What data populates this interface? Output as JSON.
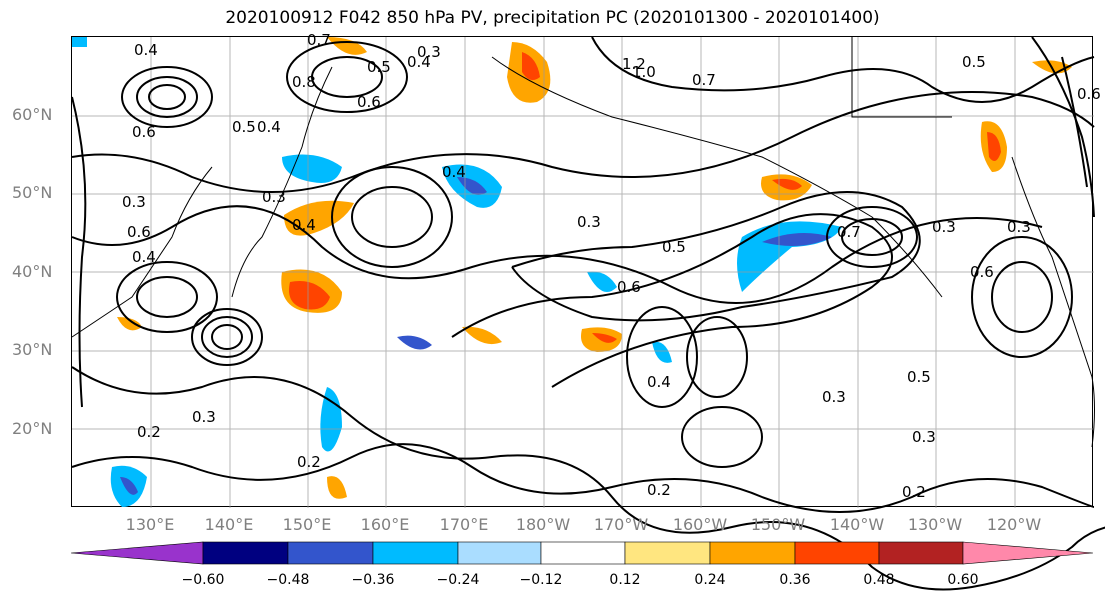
{
  "title": "2020100912 F042 850 hPa PV, precipitation PC (2020101300 - 2020101400)",
  "lat_labels": [
    "60°N",
    "50°N",
    "40°N",
    "30°N",
    "20°N"
  ],
  "lon_labels": [
    "130°E",
    "140°E",
    "150°E",
    "160°E",
    "170°E",
    "180°W",
    "170°W",
    "160°W",
    "150°W",
    "140°W",
    "130°W",
    "120°W"
  ],
  "colorbar": {
    "ticks": [
      "−0.60",
      "−0.48",
      "−0.36",
      "−0.24",
      "−0.12",
      "0.12",
      "0.24",
      "0.36",
      "0.48",
      "0.60"
    ],
    "colors": [
      "#9933cc",
      "#000080",
      "#3355cc",
      "#00bbff",
      "#aaddff",
      "#ffffff",
      "#ffe680",
      "#ffa500",
      "#ff4400",
      "#b22222",
      "#ff88aa"
    ]
  },
  "contour_labels": [
    {
      "text": "0.4"
    },
    {
      "text": "0.7"
    },
    {
      "text": "0.3"
    },
    {
      "text": "0.4"
    },
    {
      "text": "0.5"
    },
    {
      "text": "0.8"
    },
    {
      "text": "0.6"
    },
    {
      "text": "0.5"
    },
    {
      "text": "0.4"
    },
    {
      "text": "0.6"
    },
    {
      "text": "0.3"
    },
    {
      "text": "0.4"
    },
    {
      "text": "0.3"
    },
    {
      "text": "0.4"
    },
    {
      "text": "0.3"
    },
    {
      "text": "0.6"
    },
    {
      "text": "0.5"
    },
    {
      "text": "0.4"
    },
    {
      "text": "0.6"
    },
    {
      "text": "0.7"
    },
    {
      "text": "0.3"
    },
    {
      "text": "0.6"
    },
    {
      "text": "0.3"
    },
    {
      "text": "0.5"
    },
    {
      "text": "0.4"
    },
    {
      "text": "0.3"
    },
    {
      "text": "0.3"
    },
    {
      "text": "0.2"
    },
    {
      "text": "0.2"
    },
    {
      "text": "0.2"
    },
    {
      "text": "0.2"
    },
    {
      "text": "0.3"
    },
    {
      "text": "1.2"
    },
    {
      "text": "1.0"
    },
    {
      "text": "0.7"
    },
    {
      "text": "0.6"
    },
    {
      "text": "0.5"
    }
  ]
}
